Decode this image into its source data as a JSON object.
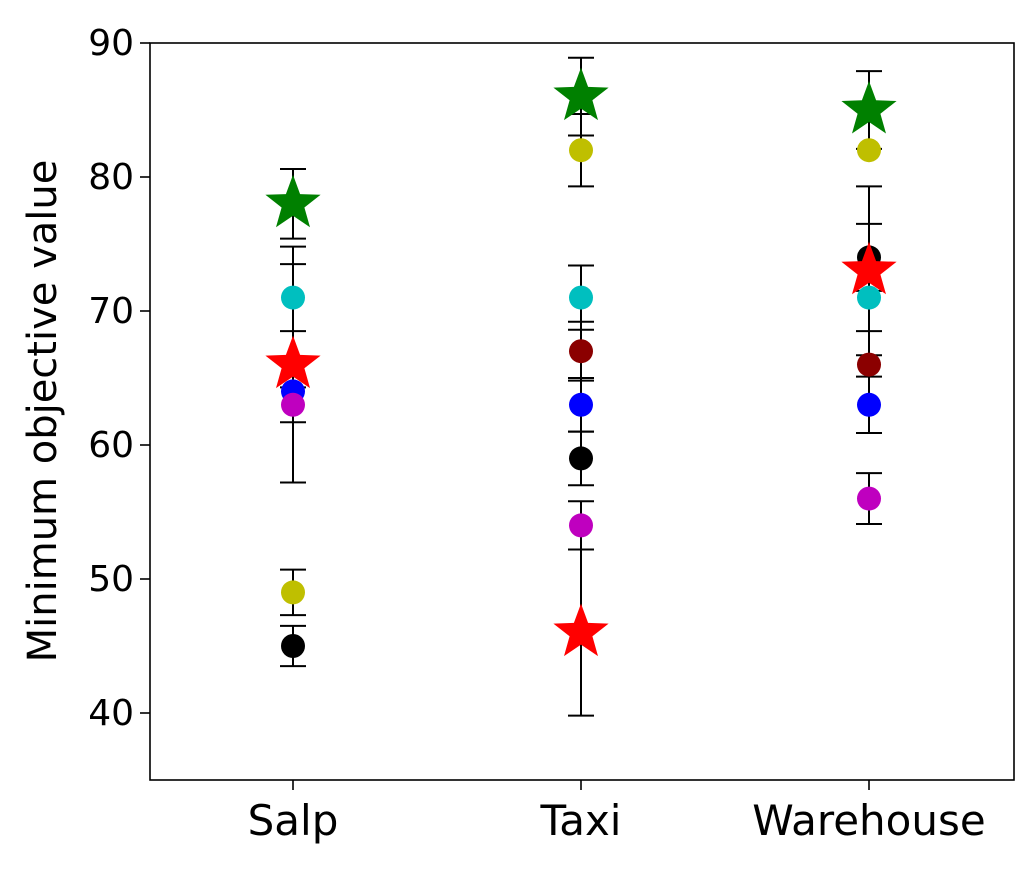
{
  "chart_data": {
    "type": "scatter",
    "categories": [
      "Salp",
      "Taxi",
      "Warehouse"
    ],
    "ylabel": "Minimum objective value",
    "xlabel": "",
    "title": "",
    "ylim": [
      35,
      90
    ],
    "yticks": [
      40,
      50,
      60,
      70,
      80,
      90
    ],
    "grid": false,
    "series": [
      {
        "color": "#000000",
        "marker": "circle",
        "values": [
          45,
          59,
          74
        ],
        "err": [
          1.5,
          2,
          2.5
        ]
      },
      {
        "color": "#bfbf00",
        "marker": "circle",
        "values": [
          49,
          82,
          82
        ],
        "err": [
          1.7,
          2.7,
          0
        ]
      },
      {
        "color": "#00bfbf",
        "marker": "circle",
        "values": [
          71,
          71,
          71
        ],
        "err": [
          2.5,
          2.4,
          2.5
        ]
      },
      {
        "color": "#0000ff",
        "marker": "circle",
        "values": [
          64,
          63,
          63
        ],
        "err": [
          0,
          2.0,
          2.1
        ]
      },
      {
        "color": "#bf00bf",
        "marker": "circle",
        "values": [
          63,
          54,
          56
        ],
        "err": [
          1.3,
          1.8,
          1.9
        ]
      },
      {
        "color": "#8b0000",
        "marker": "circle",
        "values": [
          null,
          67,
          66
        ],
        "err": [
          0,
          2.2,
          0
        ]
      },
      {
        "color": "#008000",
        "marker": "star",
        "values": [
          78,
          86,
          85
        ],
        "err": [
          2.6,
          2.9,
          2.9
        ]
      },
      {
        "color": "#ff0000",
        "marker": "star",
        "values": [
          66,
          46,
          73
        ],
        "err": [
          8.8,
          6.2,
          6.3
        ]
      }
    ]
  }
}
